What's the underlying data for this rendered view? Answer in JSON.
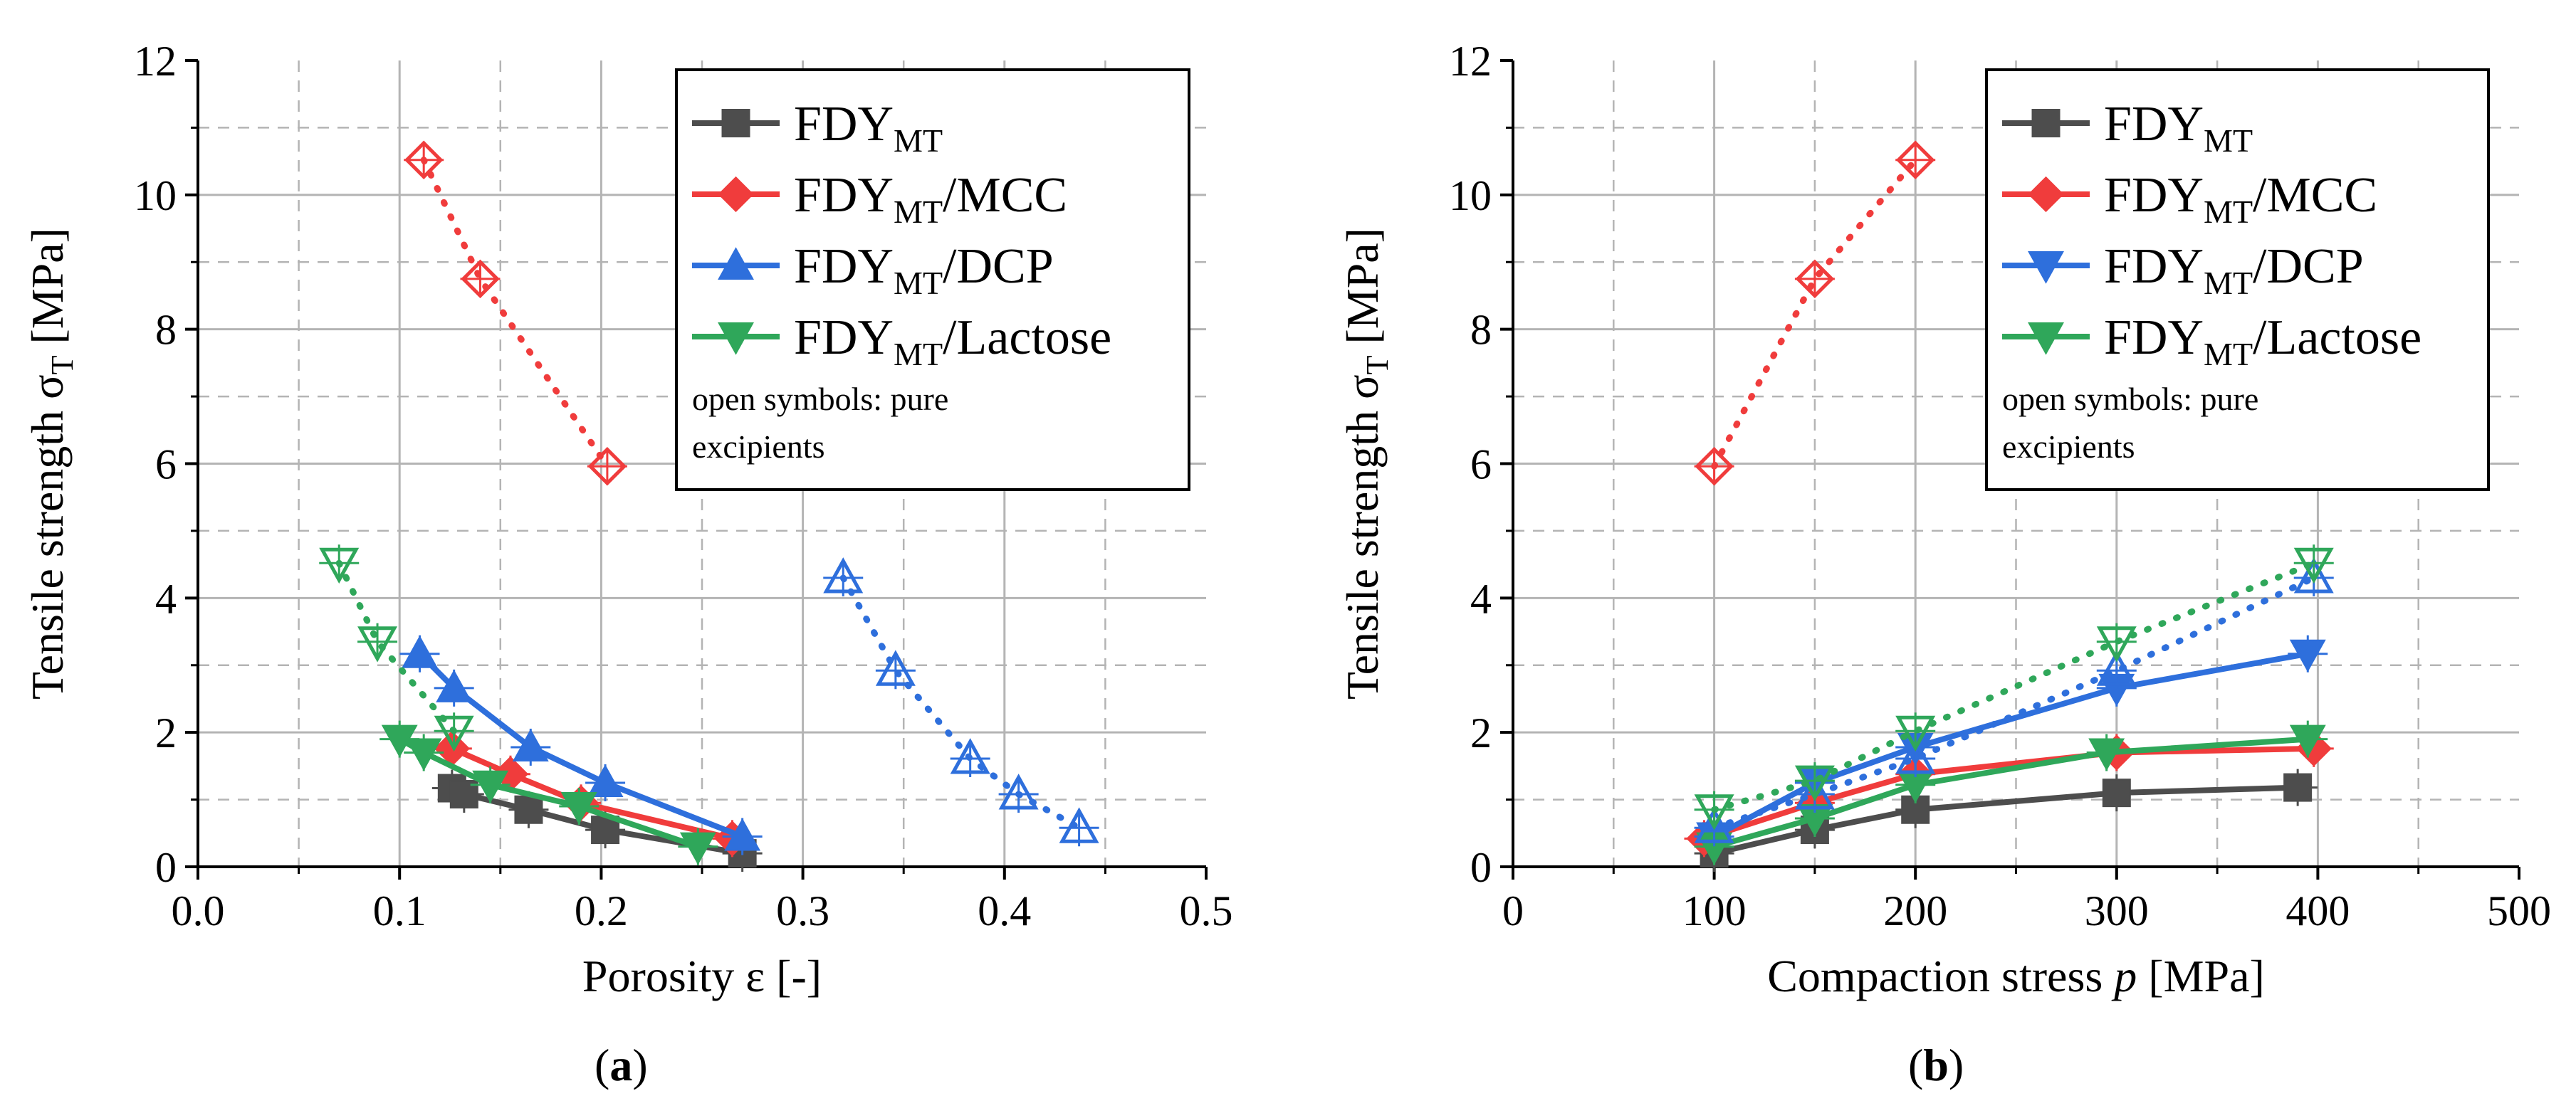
{
  "colors": {
    "FDY_MT": "#4d4d4d",
    "MCC": "#f03c3c",
    "DCP": "#2e6fdc",
    "Lactose": "#2fa75a",
    "grid": "#b4b4b4"
  },
  "legend": {
    "base": "FDY",
    "sub": "MT",
    "entries": [
      {
        "suffix": ""
      },
      {
        "suffix": "/MCC"
      },
      {
        "suffix": "/DCP"
      },
      {
        "suffix": "/Lactose"
      }
    ],
    "note_line1": "open symbols: pure",
    "note_line2": "excipients"
  },
  "panel_labels": [
    "a",
    "b"
  ],
  "chart_data": [
    {
      "type": "line",
      "panel": "a",
      "ylabel_main": "Tensile strength σ",
      "ylabel_sub": "T",
      "ylabel_unit": " [MPa]",
      "xlabel": "Porosity ε [-]",
      "xlim": [
        0.0,
        0.5
      ],
      "ylim": [
        0,
        12
      ],
      "xticks": [
        "0.0",
        "0.1",
        "0.2",
        "0.3",
        "0.4",
        "0.5"
      ],
      "yticks": [
        "0",
        "2",
        "4",
        "6",
        "8",
        "10",
        "12"
      ],
      "grid": true,
      "legend_position": "top-right",
      "series": [
        {
          "name": "FDY_MT",
          "marker": "square",
          "style": "solid",
          "x": [
            0.126,
            0.132,
            0.164,
            0.202,
            0.27
          ],
          "y": [
            1.17,
            1.08,
            0.85,
            0.55,
            0.2
          ]
        },
        {
          "name": "FDY_MT/MCC",
          "marker": "diamond",
          "style": "solid",
          "x": [
            0.126,
            0.155,
            0.19,
            0.265
          ],
          "y": [
            1.76,
            1.38,
            0.95,
            0.42
          ]
        },
        {
          "name": "FDY_MT/DCP",
          "marker": "triangle-up",
          "style": "solid",
          "x": [
            0.11,
            0.127,
            0.165,
            0.202,
            0.27
          ],
          "y": [
            3.17,
            2.66,
            1.78,
            1.25,
            0.45
          ]
        },
        {
          "name": "FDY_MT/Lactose",
          "marker": "triangle-down",
          "style": "solid",
          "x": [
            0.1,
            0.112,
            0.145,
            0.189,
            0.248
          ],
          "y": [
            1.9,
            1.7,
            1.22,
            0.9,
            0.3
          ]
        },
        {
          "name": "MCC (pure)",
          "marker": "diamond-open",
          "style": "dotted",
          "color": "MCC",
          "x": [
            0.112,
            0.14,
            0.203
          ],
          "y": [
            10.52,
            8.75,
            5.96
          ]
        },
        {
          "name": "DCP (pure)",
          "marker": "triangle-up-open",
          "style": "dotted",
          "color": "DCP",
          "x": [
            0.32,
            0.346,
            0.383,
            0.407,
            0.437
          ],
          "y": [
            4.3,
            2.92,
            1.61,
            1.08,
            0.58
          ]
        },
        {
          "name": "Lactose (pure)",
          "marker": "triangle-down-open",
          "style": "dotted",
          "color": "Lactose",
          "x": [
            0.07,
            0.089,
            0.127
          ],
          "y": [
            4.52,
            3.35,
            2.02
          ]
        }
      ]
    },
    {
      "type": "line",
      "panel": "b",
      "ylabel_main": "Tensile strength σ",
      "ylabel_sub": "T",
      "ylabel_unit": " [MPa]",
      "xlabel_main": "Compaction stress ",
      "xlabel_var": "p",
      "xlabel_unit": " [MPa]",
      "xlim": [
        0,
        500
      ],
      "ylim": [
        0,
        12
      ],
      "xticks": [
        "0",
        "100",
        "200",
        "300",
        "400",
        "500"
      ],
      "yticks": [
        "0",
        "2",
        "4",
        "6",
        "8",
        "10",
        "12"
      ],
      "grid": true,
      "legend_position": "top-left",
      "series": [
        {
          "name": "FDY_MT",
          "marker": "square",
          "style": "solid",
          "x": [
            100,
            150,
            200,
            300,
            390
          ],
          "y": [
            0.2,
            0.55,
            0.85,
            1.1,
            1.18
          ]
        },
        {
          "name": "FDY_MT/MCC",
          "marker": "diamond",
          "style": "solid",
          "x": [
            95,
            150,
            200,
            300,
            398
          ],
          "y": [
            0.42,
            0.95,
            1.38,
            1.7,
            1.76
          ]
        },
        {
          "name": "FDY_MT/DCP",
          "marker": "triangle-down",
          "style": "solid",
          "x": [
            100,
            150,
            200,
            300,
            395
          ],
          "y": [
            0.45,
            1.25,
            1.78,
            2.66,
            3.17
          ]
        },
        {
          "name": "FDY_MT/Lactose",
          "marker": "triangle-down",
          "style": "solid",
          "x": [
            100,
            150,
            200,
            295,
            395
          ],
          "y": [
            0.3,
            0.72,
            1.22,
            1.7,
            1.9
          ]
        },
        {
          "name": "MCC (pure)",
          "marker": "diamond-open",
          "style": "dotted",
          "color": "MCC",
          "x": [
            100,
            150,
            200
          ],
          "y": [
            5.96,
            8.75,
            10.52
          ]
        },
        {
          "name": "DCP (pure)",
          "marker": "triangle-up-open",
          "style": "dotted",
          "color": "DCP",
          "x": [
            100,
            150,
            200,
            300,
            398
          ],
          "y": [
            0.58,
            1.08,
            1.61,
            2.92,
            4.3
          ]
        },
        {
          "name": "Lactose (pure)",
          "marker": "triangle-down-open",
          "style": "dotted",
          "color": "Lactose",
          "x": [
            100,
            150,
            200,
            300,
            398
          ],
          "y": [
            0.85,
            1.28,
            2.02,
            3.35,
            4.52
          ]
        }
      ]
    }
  ]
}
